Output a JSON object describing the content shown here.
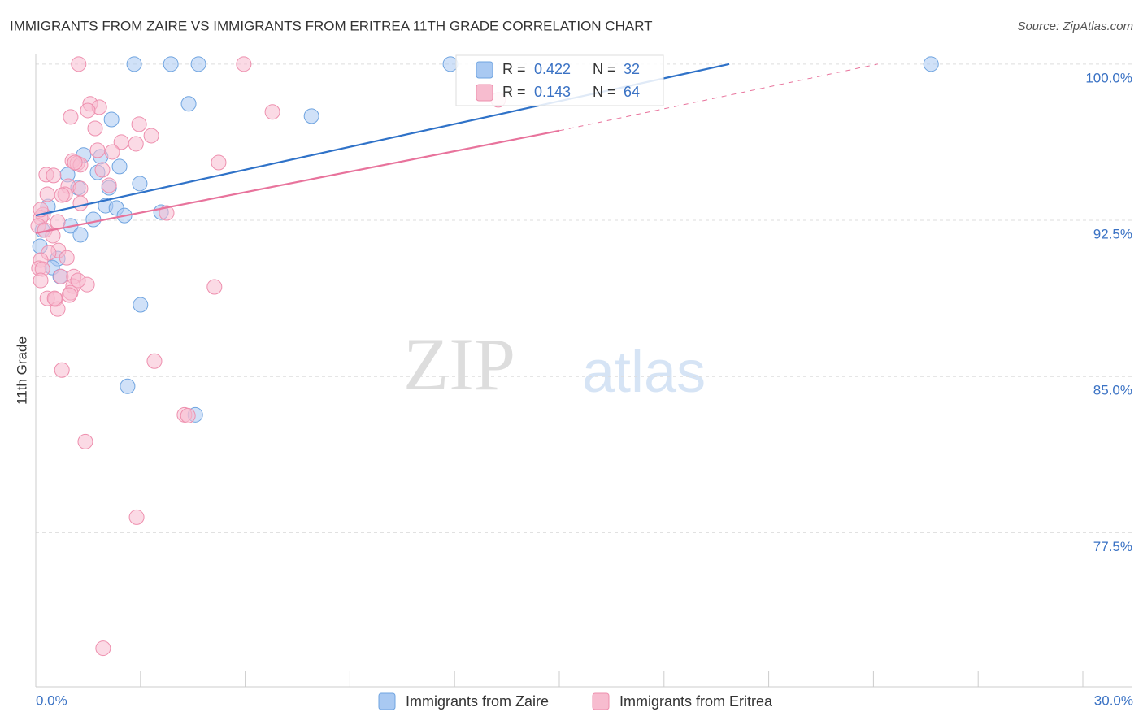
{
  "chart_data": {
    "type": "scatter",
    "title": "IMMIGRANTS FROM ZAIRE VS IMMIGRANTS FROM ERITREA 11TH GRADE CORRELATION CHART",
    "source": "Source: ZipAtlas.com",
    "y_label": "11th Grade",
    "watermark": [
      "ZIP",
      "atlas"
    ],
    "xlim": [
      0,
      30
    ],
    "ylim": [
      70.1,
      100.5
    ],
    "xticks": [
      {
        "value": 0,
        "label": "0.0%"
      },
      {
        "value": 30,
        "label": "30.0%"
      }
    ],
    "xtick_marks": [
      0,
      3,
      6,
      9,
      12,
      15,
      18,
      21,
      24,
      27,
      30
    ],
    "yticks": [
      {
        "value": 77.5,
        "label": "77.5%"
      },
      {
        "value": 85,
        "label": "85.0%"
      },
      {
        "value": 92.5,
        "label": "92.5%"
      },
      {
        "value": 100,
        "label": "100.0%"
      }
    ],
    "grid": true,
    "stat_labels": {
      "r": "R =",
      "n": "N ="
    },
    "series": [
      {
        "name": "Immigrants from Zaire",
        "color": "#a9c9f2",
        "stroke": "#6fa4e0",
        "line_color": "#2f72c8",
        "r": 0.422,
        "n": 32,
        "x": [
          2.82,
          3.87,
          4.66,
          11.88,
          25.65,
          4.38,
          7.9,
          2.17,
          1.37,
          1.86,
          2.4,
          1.77,
          0.91,
          2.98,
          1.21,
          2.1,
          0.35,
          2.0,
          2.31,
          2.54,
          1.65,
          3.59,
          1.0,
          0.19,
          1.28,
          0.12,
          0.63,
          0.47,
          0.7,
          3.0,
          2.63,
          4.57
        ],
        "values": [
          100,
          100,
          100,
          100,
          100,
          98.09,
          97.5,
          97.34,
          95.63,
          95.55,
          95.08,
          94.8,
          94.69,
          94.26,
          94.06,
          94.06,
          93.16,
          93.2,
          93.09,
          92.73,
          92.54,
          92.89,
          92.23,
          92.03,
          91.8,
          91.25,
          90.66,
          90.23,
          89.8,
          88.44,
          84.53,
          83.16
        ],
        "trend": {
          "x": [
            0,
            19.87
          ],
          "y": [
            92.73,
            100
          ]
        }
      },
      {
        "name": "Immigrants from Eritrea",
        "color": "#f7bccf",
        "stroke": "#ee8fae",
        "line_color": "#e8739c",
        "r": 0.143,
        "n": 64,
        "x": [
          1.23,
          5.96,
          1.56,
          6.78,
          1.0,
          1.82,
          1.49,
          1.7,
          2.96,
          3.31,
          2.45,
          2.87,
          2.19,
          5.24,
          1.05,
          1.19,
          1.28,
          1.91,
          0.3,
          0.51,
          0.93,
          2.1,
          1.28,
          0.33,
          0.84,
          0.75,
          1.28,
          0.21,
          0.14,
          0.63,
          0.07,
          0.26,
          0.49,
          3.75,
          0.65,
          0.37,
          0.14,
          0.09,
          0.19,
          0.14,
          0.72,
          1.09,
          1.07,
          1.47,
          5.12,
          0.33,
          0.56,
          0.63,
          1.0,
          0.96,
          3.4,
          0.75,
          4.26,
          4.36,
          1.42,
          2.89,
          1.93,
          13.25,
          1.21,
          0.89,
          0.14,
          1.77,
          0.54,
          1.12
        ],
        "values": [
          100,
          100,
          98.09,
          97.7,
          97.46,
          97.93,
          97.77,
          96.91,
          97.11,
          96.56,
          96.25,
          96.17,
          95.78,
          95.27,
          95.35,
          95.23,
          95.16,
          94.92,
          94.69,
          94.65,
          94.14,
          94.18,
          94.02,
          93.75,
          93.75,
          93.71,
          93.32,
          92.77,
          92.62,
          92.42,
          92.23,
          92.03,
          91.76,
          92.85,
          91.05,
          90.94,
          90.59,
          90.2,
          90.16,
          89.61,
          89.8,
          89.8,
          89.34,
          89.41,
          89.3,
          88.75,
          88.71,
          88.24,
          89.02,
          88.91,
          85.74,
          85.31,
          83.16,
          83.12,
          81.87,
          78.24,
          71.95,
          98.28,
          89.61,
          90.7,
          93.01,
          95.86,
          88.75,
          95.27
        ],
        "trend": {
          "x": [
            0,
            15
          ],
          "y": [
            91.88,
            96.8
          ]
        },
        "trend_extension": {
          "x": [
            15,
            24.13
          ],
          "y": [
            96.8,
            100
          ]
        }
      }
    ]
  }
}
